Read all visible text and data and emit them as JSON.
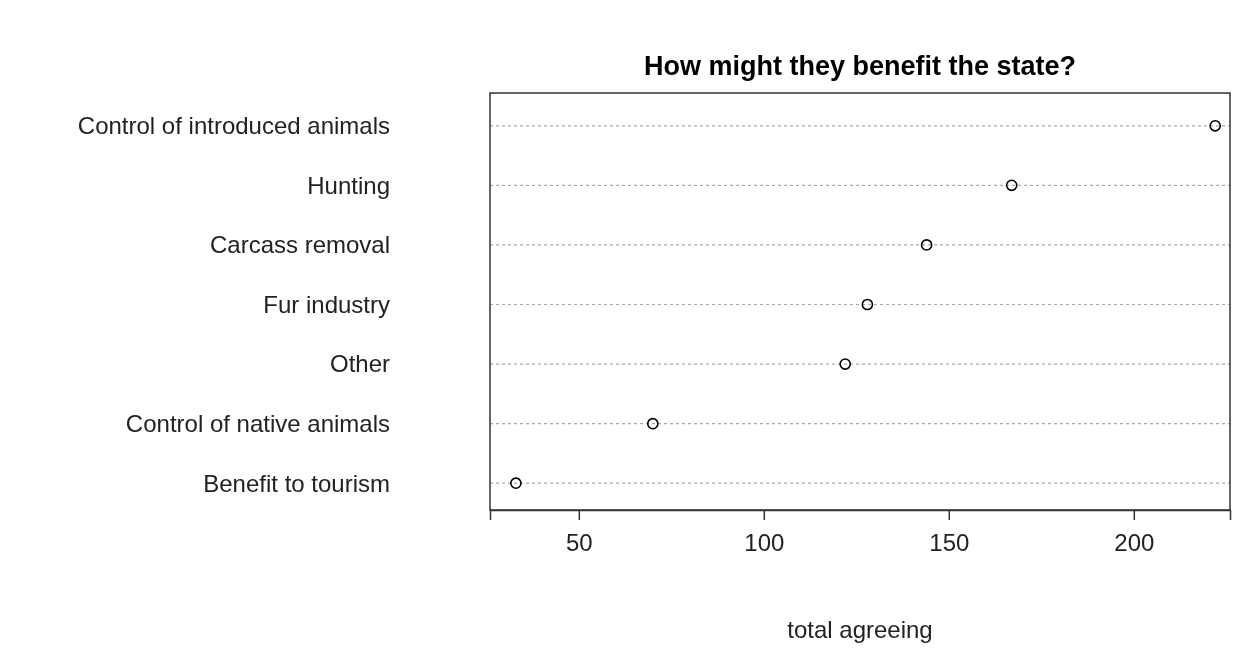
{
  "chart_data": {
    "type": "scatter",
    "orientation": "horizontal",
    "title": "How might they benefit the state?",
    "xlabel": "total agreeing",
    "categories": [
      "Control of introduced animals",
      "Hunting",
      "Carcass removal",
      "Fur industry",
      "Other",
      "Control of native animals",
      "Benefit to tourism"
    ],
    "values": [
      222,
      167,
      144,
      128,
      122,
      70,
      33
    ],
    "color": "#000000",
    "marker": "circle",
    "grid": "y",
    "line_style": "dotted",
    "xlim": [
      26,
      226
    ],
    "xticks": [
      50,
      100,
      150,
      200
    ]
  }
}
